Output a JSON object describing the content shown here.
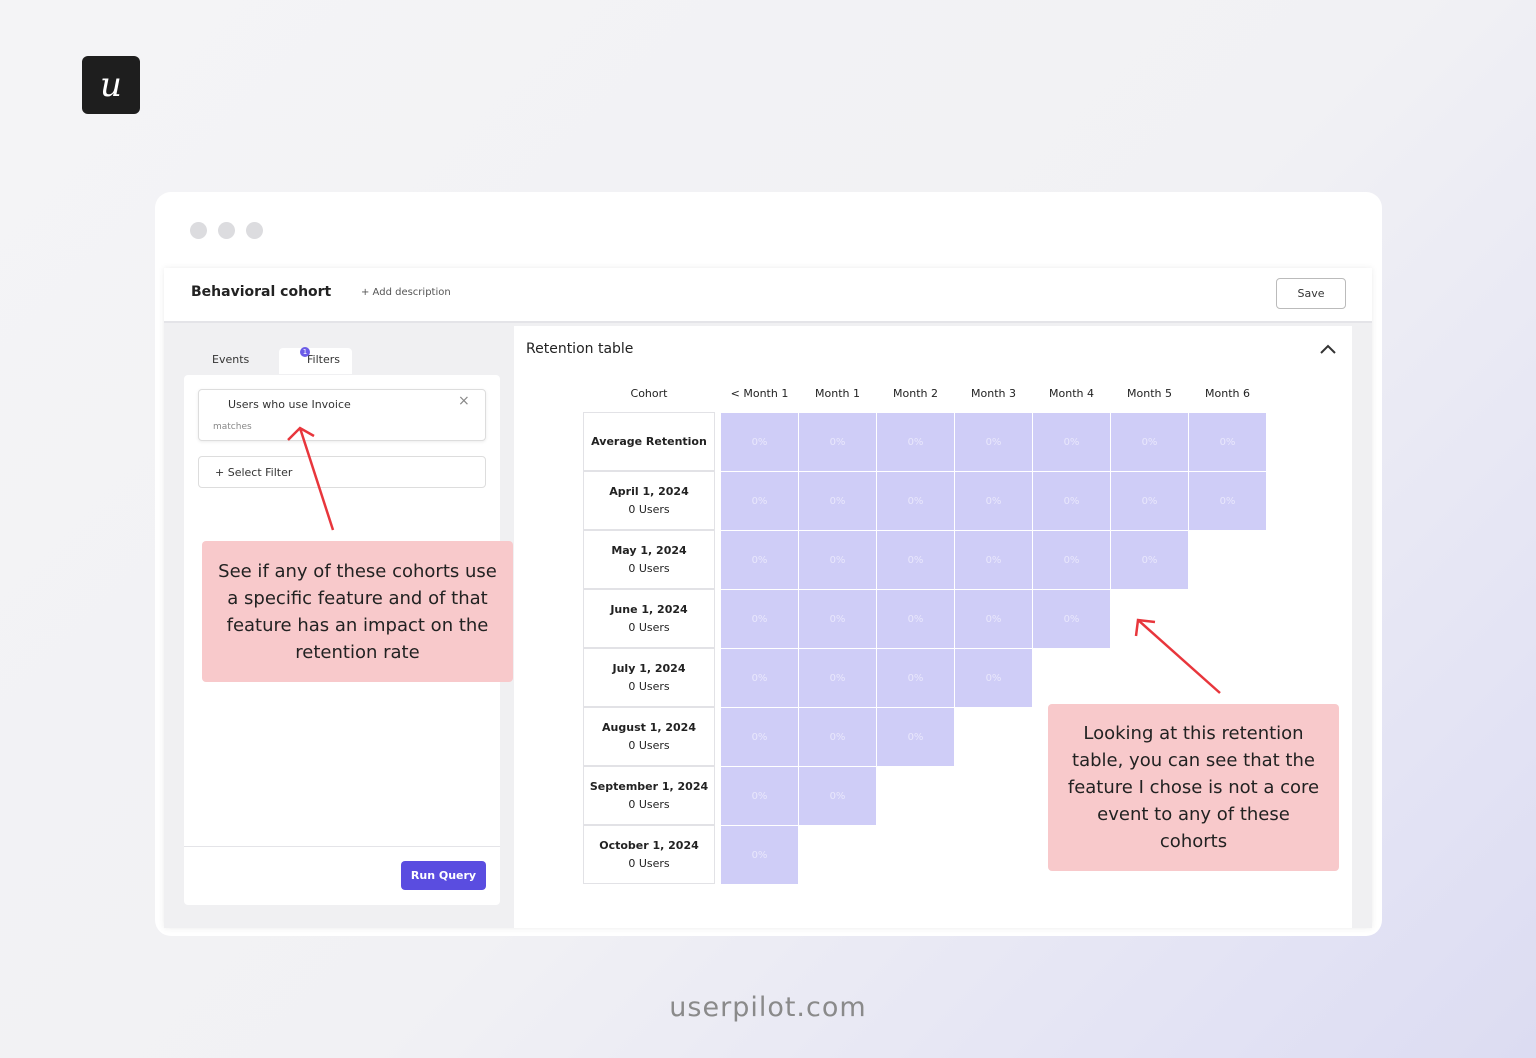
{
  "logo": "u",
  "header": {
    "title": "Behavioral cohort",
    "add_description": "+ Add description",
    "save": "Save"
  },
  "tabs": {
    "events": "Events",
    "filters": "Filters",
    "filters_badge": "1"
  },
  "filter": {
    "name": "Users who use Invoice",
    "condition": "matches"
  },
  "select_filter": "+ Select Filter",
  "run_query": "Run Query",
  "annotation_left": "See if any of these cohorts use a specific feature and of that feature has an impact on the retention rate",
  "retention": {
    "title": "Retention table",
    "columns": [
      "Cohort",
      "< Month 1",
      "Month 1",
      "Month 2",
      "Month 3",
      "Month 4",
      "Month 5",
      "Month 6"
    ],
    "rows": [
      {
        "cohort": "Average Retention",
        "cells": [
          "0%",
          "0%",
          "0%",
          "0%",
          "0%",
          "0%",
          "0%"
        ]
      },
      {
        "cohort": "April 1, 2024",
        "users": "0 Users",
        "cells": [
          "0%",
          "0%",
          "0%",
          "0%",
          "0%",
          "0%",
          "0%"
        ]
      },
      {
        "cohort": "May 1, 2024",
        "users": "0 Users",
        "cells": [
          "0%",
          "0%",
          "0%",
          "0%",
          "0%",
          "0%"
        ]
      },
      {
        "cohort": "June 1, 2024",
        "users": "0 Users",
        "cells": [
          "0%",
          "0%",
          "0%",
          "0%",
          "0%"
        ]
      },
      {
        "cohort": "July 1, 2024",
        "users": "0 Users",
        "cells": [
          "0%",
          "0%",
          "0%",
          "0%"
        ]
      },
      {
        "cohort": "August 1, 2024",
        "users": "0 Users",
        "cells": [
          "0%",
          "0%",
          "0%"
        ]
      },
      {
        "cohort": "September 1, 2024",
        "users": "0 Users",
        "cells": [
          "0%",
          "0%"
        ]
      },
      {
        "cohort": "October 1, 2024",
        "users": "0 Users",
        "cells": [
          "0%"
        ]
      }
    ]
  },
  "annotation_right": "Looking at this retention table, you can see that the feature I chose is not a core event to any of these cohorts",
  "footer": "userpilot.com"
}
